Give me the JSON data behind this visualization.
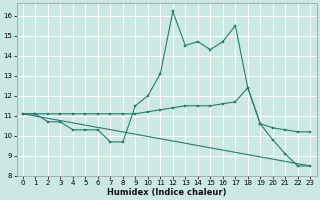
{
  "xlabel": "Humidex (Indice chaleur)",
  "background_color": "#cce8e3",
  "grid_color": "#b8d8d3",
  "line_color": "#2a7a6e",
  "xlim": [
    -0.5,
    23.5
  ],
  "ylim": [
    8,
    16.6
  ],
  "yticks": [
    8,
    9,
    10,
    11,
    12,
    13,
    14,
    15,
    16
  ],
  "xticks": [
    0,
    1,
    2,
    3,
    4,
    5,
    6,
    7,
    8,
    9,
    10,
    11,
    12,
    13,
    14,
    15,
    16,
    17,
    18,
    19,
    20,
    21,
    22,
    23
  ],
  "line1_x": [
    0,
    1,
    2,
    3,
    4,
    5,
    6,
    7,
    8,
    9,
    10,
    11,
    12,
    13,
    14,
    15,
    16,
    17,
    18,
    19,
    20,
    21,
    22,
    23
  ],
  "line1_y": [
    11.1,
    11.1,
    10.7,
    10.7,
    10.3,
    10.3,
    10.3,
    9.7,
    9.7,
    11.5,
    12.0,
    13.1,
    16.2,
    14.5,
    14.7,
    14.3,
    14.7,
    15.5,
    12.4,
    10.6,
    9.8,
    9.1,
    8.5,
    8.5
  ],
  "line2_x": [
    0,
    1,
    2,
    3,
    4,
    5,
    6,
    7,
    8,
    9,
    10,
    11,
    12,
    13,
    14,
    15,
    16,
    17,
    18,
    19,
    20,
    21,
    22,
    23
  ],
  "line2_y": [
    11.1,
    11.1,
    11.1,
    11.1,
    11.1,
    11.1,
    11.1,
    11.1,
    11.1,
    11.1,
    11.2,
    11.3,
    11.4,
    11.5,
    11.5,
    11.5,
    11.6,
    11.7,
    12.4,
    10.6,
    10.4,
    10.3,
    10.2,
    10.2
  ],
  "line3_x": [
    0,
    23
  ],
  "line3_y": [
    11.1,
    8.5
  ]
}
